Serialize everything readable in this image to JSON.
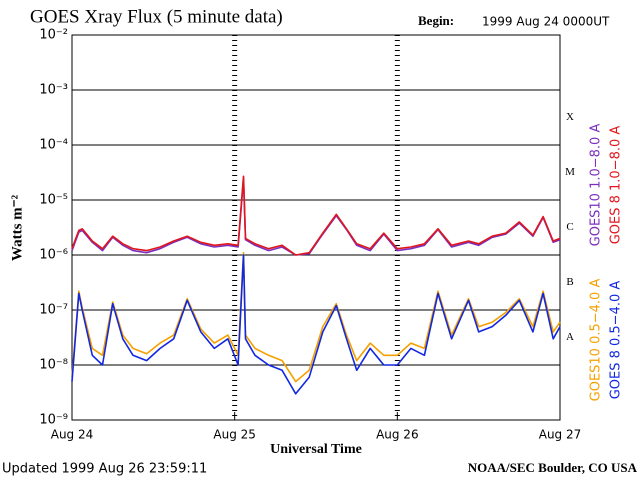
{
  "chart_data": {
    "type": "line",
    "title": "GOES Xray Flux (5 minute data)",
    "begin_label": "Begin:",
    "begin": "1999 Aug 24 0000UT",
    "y_label": "Watts m⁻²",
    "x_label": "Universal Time",
    "footer_left": "Updated 1999 Aug 26 23:59:11",
    "footer_right": "NOAA/SEC Boulder, CO USA",
    "log_y": true,
    "grid": true,
    "xlim": [
      0,
      72
    ],
    "xticks": [
      {
        "value": 0,
        "label": "Aug 24"
      },
      {
        "value": 24,
        "label": "Aug 25"
      },
      {
        "value": 48,
        "label": "Aug 26"
      },
      {
        "value": 72,
        "label": "Aug 27"
      }
    ],
    "ylim": [
      1e-09,
      0.01
    ],
    "yticks": [
      {
        "value": 1e-09,
        "label": "10⁻⁹"
      },
      {
        "value": 1e-08,
        "label": "10⁻⁸"
      },
      {
        "value": 1e-07,
        "label": "10⁻⁷"
      },
      {
        "value": 1e-06,
        "label": "10⁻⁶"
      },
      {
        "value": 1e-05,
        "label": "10⁻⁵"
      },
      {
        "value": 0.0001,
        "label": "10⁻⁴"
      },
      {
        "value": 0.001,
        "label": "10⁻³"
      },
      {
        "value": 0.01,
        "label": "10⁻²"
      }
    ],
    "class_labels": [
      {
        "value": 0.0001,
        "label": "X"
      },
      {
        "value": 1e-05,
        "label": "M"
      },
      {
        "value": 1e-06,
        "label": "C"
      },
      {
        "value": 1e-07,
        "label": "B"
      },
      {
        "value": 1e-08,
        "label": "A"
      }
    ],
    "x": [
      0,
      1,
      1.5,
      3,
      4.5,
      6,
      7.5,
      9,
      11,
      13,
      15,
      17,
      19,
      21,
      23,
      24.5,
      25.3,
      25.6,
      27,
      29,
      31,
      33,
      35,
      37,
      39,
      40.5,
      42,
      44,
      46,
      48,
      50,
      52,
      54,
      56,
      58.5,
      60,
      62,
      64,
      66,
      68,
      69.5,
      71,
      72
    ],
    "series": [
      {
        "name": "GOES10 1.0−8.0 A",
        "color": "#7b2fbe",
        "values": [
          1.2e-06,
          2.6e-06,
          2.8e-06,
          1.7e-06,
          1.2e-06,
          2.1e-06,
          1.5e-06,
          1.2e-06,
          1.1e-06,
          1.3e-06,
          1.7e-06,
          2.1e-06,
          1.6e-06,
          1.4e-06,
          1.5e-06,
          1.4e-06,
          2.5e-05,
          1.9e-06,
          1.5e-06,
          1.2e-06,
          1.4e-06,
          1e-06,
          1.05e-06,
          2.4e-06,
          5.2e-06,
          2.9e-06,
          1.5e-06,
          1.2e-06,
          2.4e-06,
          1.2e-06,
          1.3e-06,
          1.5e-06,
          2.9e-06,
          1.4e-06,
          1.7e-06,
          1.5e-06,
          2.1e-06,
          2.4e-06,
          3.8e-06,
          2.2e-06,
          4.8e-06,
          1.7e-06,
          1.9e-06
        ]
      },
      {
        "name": "GOES 8 1.0−8.0 A",
        "color": "#e0161d",
        "values": [
          1.3e-06,
          2.8e-06,
          3e-06,
          1.8e-06,
          1.3e-06,
          2.2e-06,
          1.6e-06,
          1.3e-06,
          1.2e-06,
          1.4e-06,
          1.8e-06,
          2.2e-06,
          1.7e-06,
          1.5e-06,
          1.6e-06,
          1.5e-06,
          2.7e-05,
          2e-06,
          1.6e-06,
          1.3e-06,
          1.5e-06,
          1e-06,
          1.1e-06,
          2.5e-06,
          5.5e-06,
          3e-06,
          1.6e-06,
          1.3e-06,
          2.5e-06,
          1.3e-06,
          1.4e-06,
          1.6e-06,
          3e-06,
          1.5e-06,
          1.8e-06,
          1.6e-06,
          2.2e-06,
          2.5e-06,
          4e-06,
          2.3e-06,
          5e-06,
          1.8e-06,
          2e-06
        ]
      },
      {
        "name": "GOES10 0.5−4.0 A",
        "color": "#f5a000",
        "values": [
          6e-09,
          2.2e-07,
          1.1e-07,
          2e-08,
          1.5e-08,
          1.4e-07,
          3.5e-08,
          2e-08,
          1.6e-08,
          2.5e-08,
          3.5e-08,
          1.6e-07,
          4.5e-08,
          2.5e-08,
          3.5e-08,
          1.5e-08,
          1.1e-06,
          3.5e-08,
          2e-08,
          1.5e-08,
          1.2e-08,
          5e-09,
          8e-09,
          5e-08,
          1.3e-07,
          3.5e-08,
          1.2e-08,
          2.5e-08,
          1.5e-08,
          1.5e-08,
          2.5e-08,
          2e-08,
          2.2e-07,
          3.5e-08,
          1.6e-07,
          5e-08,
          6e-08,
          9e-08,
          1.6e-07,
          5e-08,
          2.2e-07,
          4e-08,
          6e-08
        ]
      },
      {
        "name": "GOES 8 0.5−4.0 A",
        "color": "#1228e0",
        "values": [
          5e-09,
          2e-07,
          1e-07,
          1.5e-08,
          1e-08,
          1.3e-07,
          3e-08,
          1.5e-08,
          1.2e-08,
          2e-08,
          3e-08,
          1.5e-07,
          4e-08,
          2e-08,
          3e-08,
          1e-08,
          1e-06,
          3e-08,
          1.5e-08,
          1e-08,
          8e-09,
          3e-09,
          6e-09,
          4e-08,
          1.2e-07,
          3e-08,
          8e-09,
          2e-08,
          1e-08,
          1e-08,
          2e-08,
          1.5e-08,
          2e-07,
          3e-08,
          1.5e-07,
          4e-08,
          5e-08,
          8e-08,
          1.5e-07,
          4e-08,
          2e-07,
          3e-08,
          5e-08
        ]
      }
    ]
  }
}
